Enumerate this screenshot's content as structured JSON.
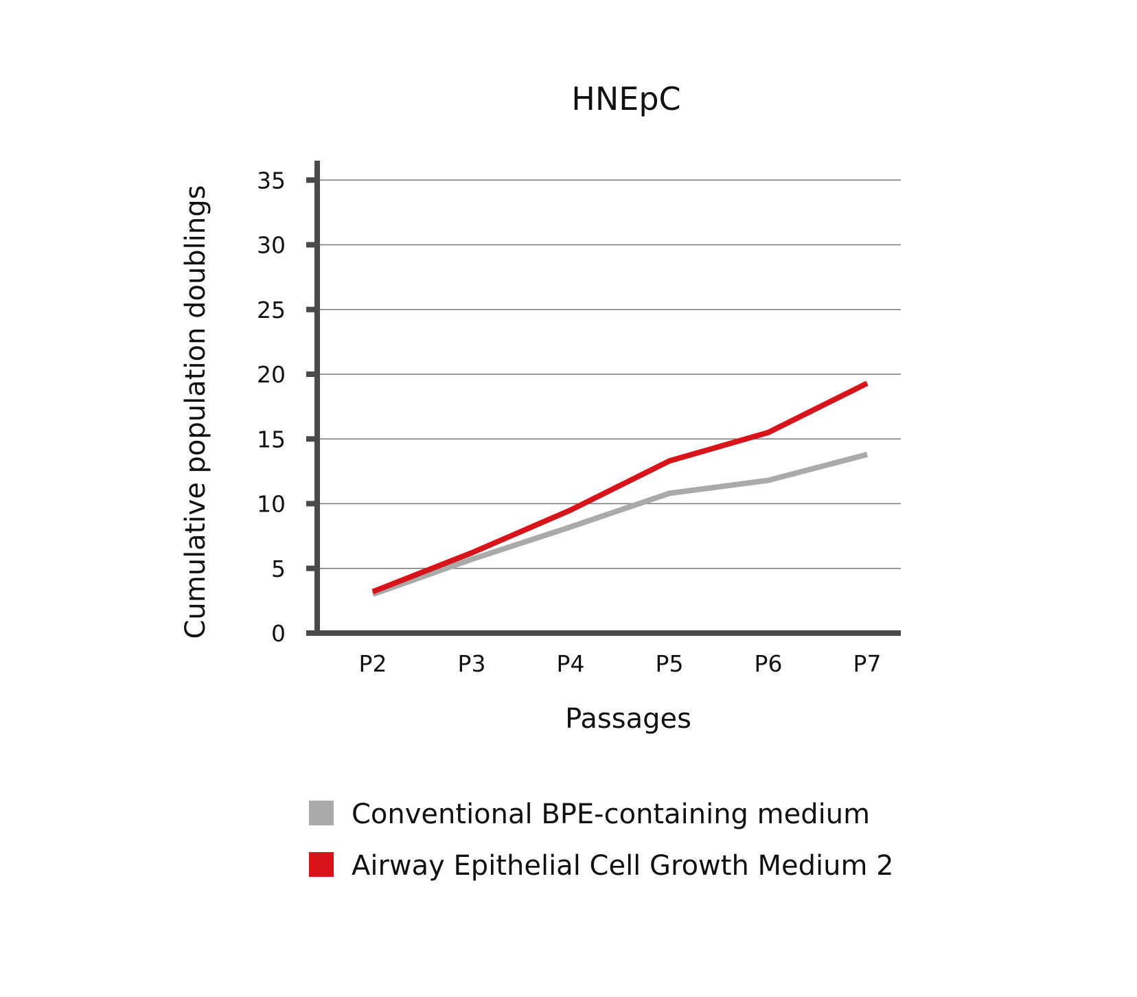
{
  "chart_data": {
    "type": "line",
    "title": "HNEpC",
    "xlabel": "Passages",
    "ylabel": "Cumulative population doublings",
    "categories": [
      "P2",
      "P3",
      "P4",
      "P5",
      "P6",
      "P7"
    ],
    "ylim": [
      0,
      35
    ],
    "yticks": [
      0,
      5,
      10,
      15,
      20,
      25,
      30,
      35
    ],
    "grid": true,
    "legend_position": "bottom",
    "series": [
      {
        "name": "Conventional BPE-containing medium",
        "color": "#aaaaaa",
        "values": [
          3.0,
          5.7,
          8.2,
          10.8,
          11.8,
          13.8
        ]
      },
      {
        "name": "Airway Epithelial Cell Growth Medium 2",
        "color": "#d7141a",
        "values": [
          3.2,
          6.2,
          9.5,
          13.3,
          15.5,
          19.3
        ]
      }
    ]
  }
}
